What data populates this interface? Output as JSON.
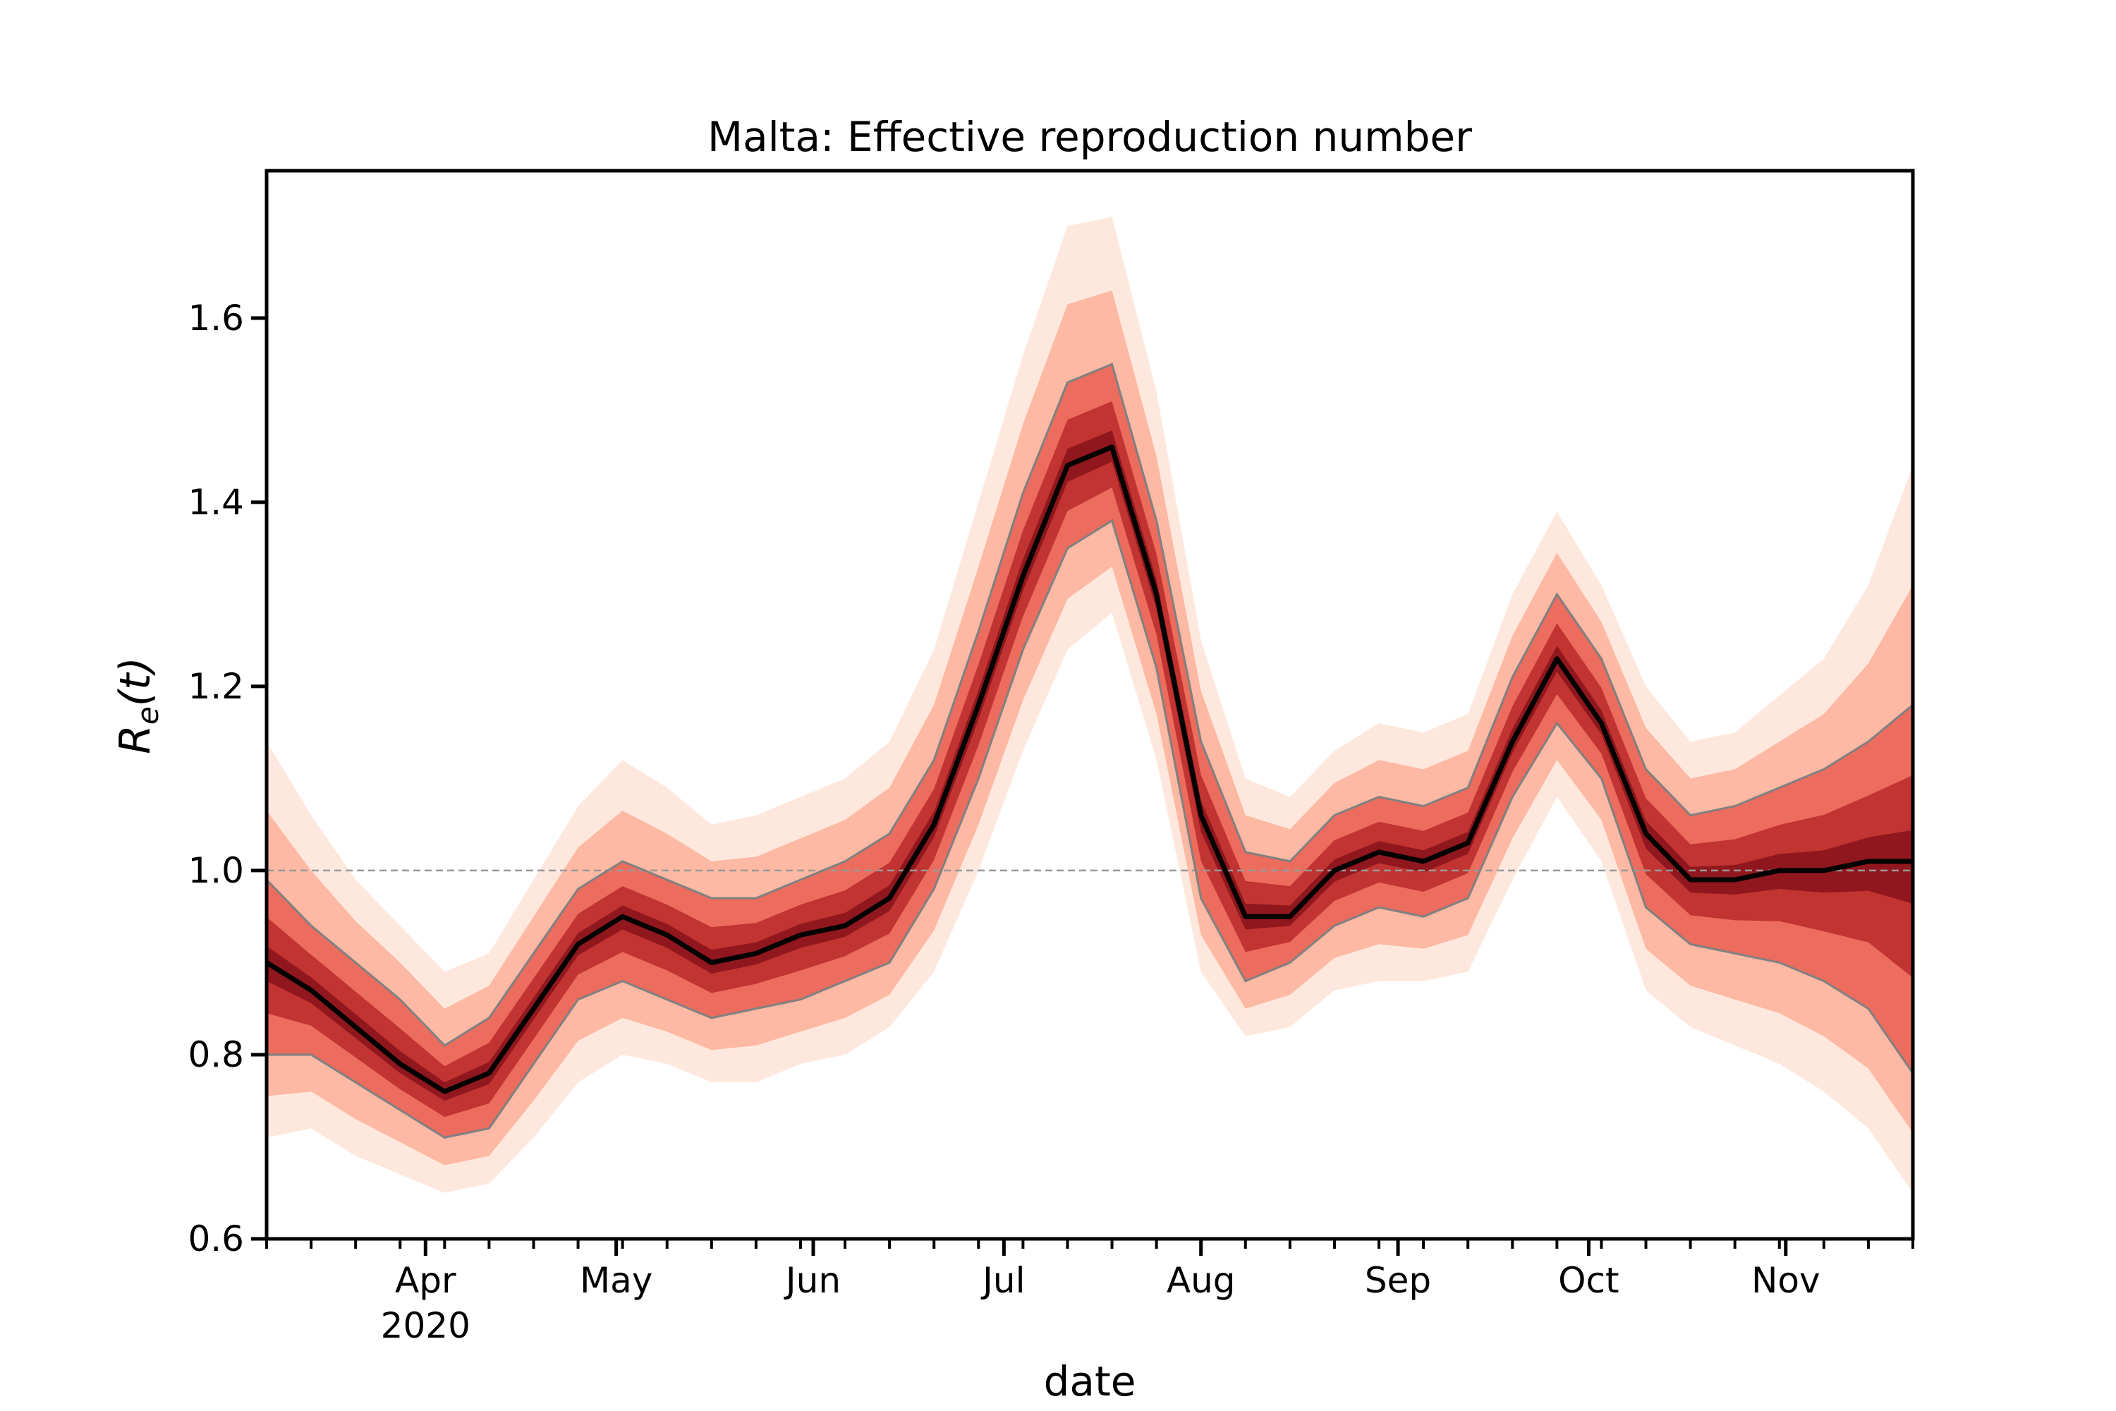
{
  "chart_data": {
    "type": "area",
    "title": "Malta: Effective reproduction number",
    "xlabel": "date",
    "ylabel": "R_e(t)",
    "ylabel_main": "R",
    "ylabel_sub": "e",
    "ylabel_rest": "(t)",
    "x_start": "2020-03-07",
    "x_end": "2020-11-21",
    "ylim": [
      0.6,
      1.76
    ],
    "yticks": [
      0.6,
      0.8,
      1.0,
      1.2,
      1.4,
      1.6
    ],
    "ytick_labels": [
      "0.6",
      "0.8",
      "1.0",
      "1.2",
      "1.4",
      "1.6"
    ],
    "xticks_major": [
      {
        "date": "2020-04-01",
        "label": "Apr",
        "sublabel": "2020"
      },
      {
        "date": "2020-05-01",
        "label": "May",
        "sublabel": ""
      },
      {
        "date": "2020-06-01",
        "label": "Jun",
        "sublabel": ""
      },
      {
        "date": "2020-07-01",
        "label": "Jul",
        "sublabel": ""
      },
      {
        "date": "2020-08-01",
        "label": "Aug",
        "sublabel": ""
      },
      {
        "date": "2020-09-01",
        "label": "Sep",
        "sublabel": ""
      },
      {
        "date": "2020-10-01",
        "label": "Oct",
        "sublabel": ""
      },
      {
        "date": "2020-11-01",
        "label": "Nov",
        "sublabel": ""
      }
    ],
    "reference_line": 1.0,
    "grid": false,
    "legend": "none",
    "series": [
      {
        "x": [
          "2020-03-07",
          "2020-03-14",
          "2020-03-21",
          "2020-03-28",
          "2020-04-04",
          "2020-04-11",
          "2020-04-18",
          "2020-04-25",
          "2020-05-02",
          "2020-05-09",
          "2020-05-16",
          "2020-05-23",
          "2020-05-30",
          "2020-06-06",
          "2020-06-13",
          "2020-06-20",
          "2020-06-27",
          "2020-07-04",
          "2020-07-11",
          "2020-07-18",
          "2020-07-25",
          "2020-08-01",
          "2020-08-08",
          "2020-08-15",
          "2020-08-22",
          "2020-08-29",
          "2020-09-05",
          "2020-09-12",
          "2020-09-19",
          "2020-09-26",
          "2020-10-03",
          "2020-10-10",
          "2020-10-17",
          "2020-10-24",
          "2020-10-31",
          "2020-11-07",
          "2020-11-14",
          "2020-11-21"
        ],
        "median": [
          0.9,
          0.87,
          0.83,
          0.79,
          0.76,
          0.78,
          0.85,
          0.92,
          0.95,
          0.93,
          0.9,
          0.91,
          0.93,
          0.94,
          0.97,
          1.05,
          1.18,
          1.32,
          1.44,
          1.46,
          1.3,
          1.06,
          0.95,
          0.95,
          1.0,
          1.02,
          1.01,
          1.03,
          1.14,
          1.23,
          1.16,
          1.04,
          0.99,
          0.99,
          1.0,
          1.0,
          1.01,
          1.01
        ],
        "lower_inner": [
          0.8,
          0.8,
          0.77,
          0.74,
          0.71,
          0.72,
          0.79,
          0.86,
          0.88,
          0.86,
          0.84,
          0.85,
          0.86,
          0.88,
          0.9,
          0.98,
          1.1,
          1.24,
          1.35,
          1.38,
          1.22,
          0.97,
          0.88,
          0.9,
          0.94,
          0.96,
          0.95,
          0.97,
          1.08,
          1.16,
          1.1,
          0.96,
          0.92,
          0.91,
          0.9,
          0.88,
          0.85,
          0.78
        ],
        "upper_inner": [
          0.99,
          0.94,
          0.9,
          0.86,
          0.81,
          0.84,
          0.91,
          0.98,
          1.01,
          0.99,
          0.97,
          0.97,
          0.99,
          1.01,
          1.04,
          1.12,
          1.26,
          1.41,
          1.53,
          1.55,
          1.38,
          1.14,
          1.02,
          1.01,
          1.06,
          1.08,
          1.07,
          1.09,
          1.21,
          1.3,
          1.23,
          1.11,
          1.06,
          1.07,
          1.09,
          1.11,
          1.14,
          1.18
        ],
        "lower_outer": [
          0.71,
          0.72,
          0.69,
          0.67,
          0.65,
          0.66,
          0.71,
          0.77,
          0.8,
          0.79,
          0.77,
          0.77,
          0.79,
          0.8,
          0.83,
          0.89,
          1.0,
          1.13,
          1.24,
          1.28,
          1.12,
          0.89,
          0.82,
          0.83,
          0.87,
          0.88,
          0.88,
          0.89,
          0.99,
          1.08,
          1.01,
          0.87,
          0.83,
          0.81,
          0.79,
          0.76,
          0.72,
          0.65
        ],
        "upper_outer": [
          1.14,
          1.06,
          0.99,
          0.94,
          0.89,
          0.91,
          0.99,
          1.07,
          1.12,
          1.09,
          1.05,
          1.06,
          1.08,
          1.1,
          1.14,
          1.24,
          1.4,
          1.56,
          1.7,
          1.71,
          1.52,
          1.25,
          1.1,
          1.08,
          1.13,
          1.16,
          1.15,
          1.17,
          1.3,
          1.39,
          1.31,
          1.2,
          1.14,
          1.15,
          1.19,
          1.23,
          1.31,
          1.44
        ]
      }
    ],
    "colors": {
      "median": "#000000",
      "band_core": "#a50f15",
      "band_mid": "#de2d26",
      "band_light": "#fc9272",
      "band_outer": "#fee0d2",
      "inner_band_edge": "#808080",
      "reference_line": "#999999"
    }
  }
}
